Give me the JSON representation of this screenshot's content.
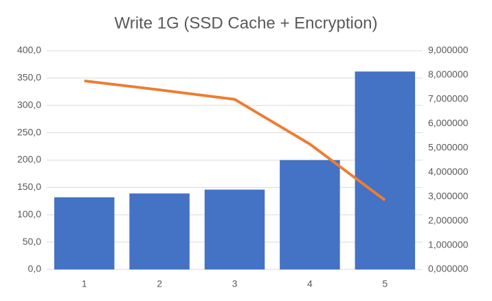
{
  "chart_data": {
    "type": "bar",
    "title": "Write 1G (SSD Cache + Encryption)",
    "categories": [
      "1",
      "2",
      "3",
      "4",
      "5"
    ],
    "series": [
      {
        "type": "bar",
        "color": "#4472c4",
        "values": [
          132,
          139,
          146,
          200,
          362
        ]
      },
      {
        "type": "line",
        "axis": "y2",
        "color": "#ed7d31",
        "values": [
          7.76,
          7.39,
          7.0,
          5.16,
          2.85
        ]
      }
    ],
    "ylim": [
      0,
      400
    ],
    "yticks": [
      {
        "value": 0,
        "label": "0,0"
      },
      {
        "value": 50,
        "label": "50,0"
      },
      {
        "value": 100,
        "label": "100,0"
      },
      {
        "value": 150,
        "label": "150,0"
      },
      {
        "value": 200,
        "label": "200,0"
      },
      {
        "value": 250,
        "label": "250,0"
      },
      {
        "value": 300,
        "label": "300,0"
      },
      {
        "value": 350,
        "label": "350,0"
      },
      {
        "value": 400,
        "label": "400,0"
      }
    ],
    "y2lim": [
      0,
      9
    ],
    "y2ticks": [
      {
        "value": 0,
        "label": "0,000000"
      },
      {
        "value": 1,
        "label": "1,000000"
      },
      {
        "value": 2,
        "label": "2,000000"
      },
      {
        "value": 3,
        "label": "3,000000"
      },
      {
        "value": 4,
        "label": "4,000000"
      },
      {
        "value": 5,
        "label": "5,000000"
      },
      {
        "value": 6,
        "label": "6,000000"
      },
      {
        "value": 7,
        "label": "7,000000"
      },
      {
        "value": 8,
        "label": "8,000000"
      },
      {
        "value": 9,
        "label": "9,000000"
      }
    ],
    "grid": true
  }
}
